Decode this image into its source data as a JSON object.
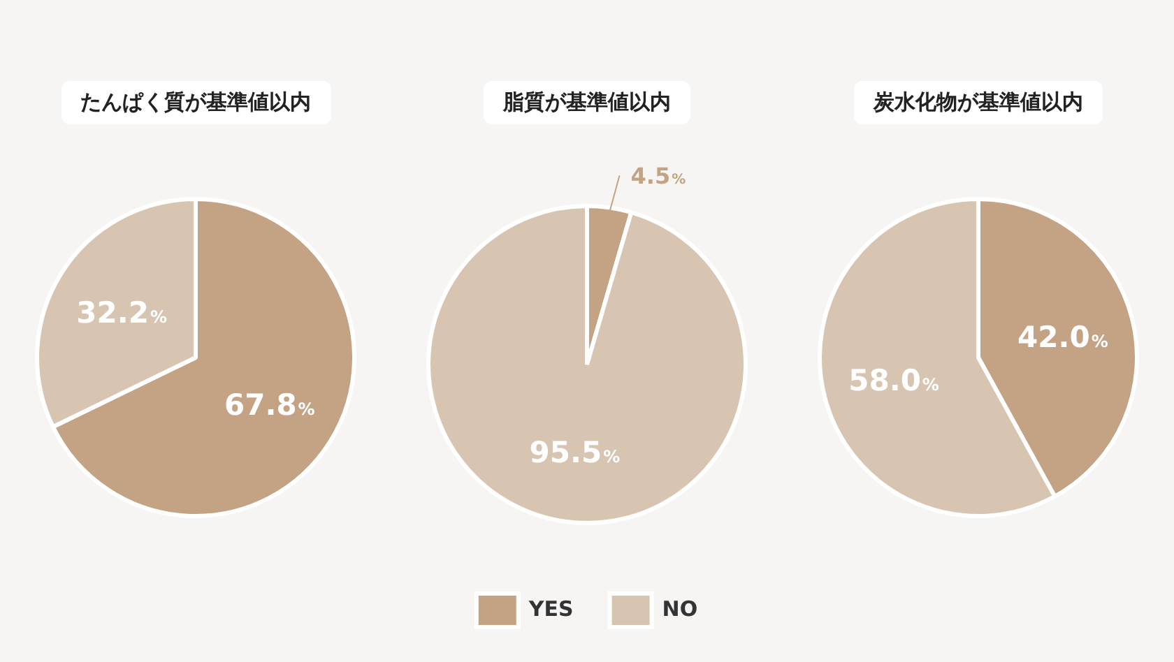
{
  "chart_data": [
    {
      "type": "pie",
      "title": "たんぱく質が基準値以内",
      "categories": [
        null,
        null
      ],
      "values": [
        67.8,
        32.2
      ],
      "colors": [
        "#c4a385",
        "#d8c5b1"
      ],
      "value_labels": [
        "67.8%",
        "32.2%"
      ],
      "legend": false
    },
    {
      "type": "pie",
      "title": "脂質が基準値以内",
      "categories": [
        "YES",
        "NO"
      ],
      "values": [
        4.5,
        95.5
      ],
      "colors": [
        "#c4a385",
        "#d8c5b1"
      ],
      "value_labels": [
        "4.5%",
        "95.5%"
      ],
      "legend": "bottom"
    },
    {
      "type": "pie",
      "title": "炭水化物が基準値以内",
      "categories": [
        null,
        null
      ],
      "values": [
        42.0,
        58.0
      ],
      "colors": [
        "#c4a385",
        "#d8c5b1"
      ],
      "value_labels": [
        "42.0%",
        "58.0%"
      ],
      "legend": false
    }
  ]
}
